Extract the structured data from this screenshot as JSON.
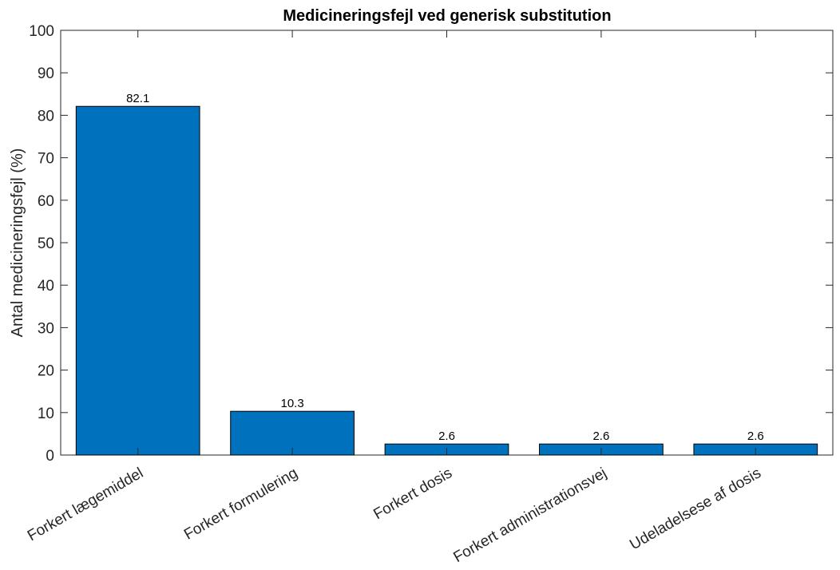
{
  "chart_data": {
    "type": "bar",
    "title": "Medicineringsfejl ved generisk substitution",
    "xlabel": "",
    "ylabel": "Antal medicineringsfejl (%)",
    "categories": [
      "Forkert lægemiddel",
      "Forkert formulering",
      "Forkert dosis",
      "Forkert administrationsvej",
      "Udeladelsese af dosis"
    ],
    "values": [
      82.1,
      10.3,
      2.6,
      2.6,
      2.6
    ],
    "data_labels": [
      "82.1",
      "10.3",
      "2.6",
      "2.6",
      "2.6"
    ],
    "ylim": [
      0,
      100
    ],
    "yticks": [
      0,
      10,
      20,
      30,
      40,
      50,
      60,
      70,
      80,
      90,
      100
    ],
    "grid": false,
    "bar_color": "#0072BD",
    "bar_edge_color": "#000000",
    "axis_color": "#262626"
  }
}
